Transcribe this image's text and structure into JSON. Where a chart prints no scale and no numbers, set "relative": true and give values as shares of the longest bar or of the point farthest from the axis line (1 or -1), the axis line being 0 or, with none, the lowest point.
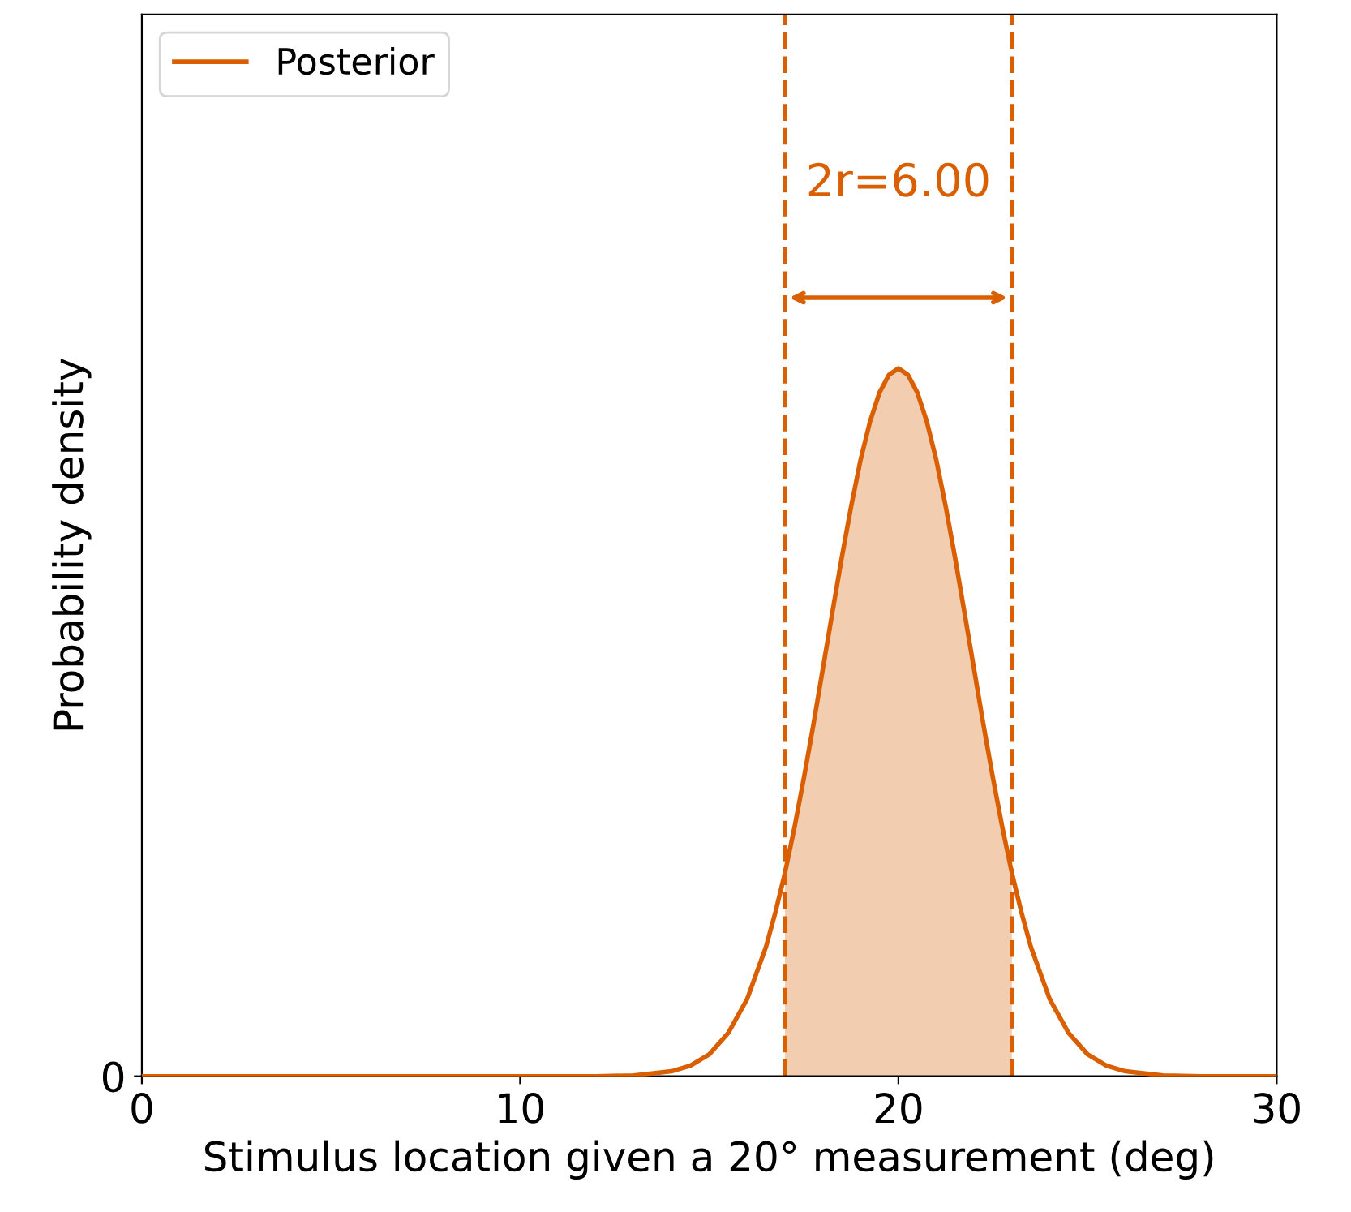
{
  "chart_data": {
    "type": "line",
    "relative": true,
    "xlabel": "Stimulus location given a 20° measurement (deg)",
    "ylabel": "Probability density",
    "xlim": [
      0,
      30
    ],
    "xticks": [
      0,
      10,
      20,
      30
    ],
    "x": [
      0,
      5,
      10,
      12,
      13,
      14,
      14.5,
      15,
      15.5,
      16,
      16.5,
      16.75,
      17,
      17.25,
      17.5,
      17.75,
      18,
      18.25,
      18.5,
      18.75,
      19,
      19.25,
      19.5,
      19.75,
      20,
      20.25,
      20.5,
      20.75,
      21,
      21.25,
      21.5,
      21.75,
      22,
      22.25,
      22.5,
      22.75,
      23,
      23.25,
      23.5,
      24,
      24.5,
      25,
      25.5,
      26,
      27,
      28,
      30
    ],
    "series": [
      {
        "type": "area",
        "color": "#f2cdb0",
        "x": [
          17,
          17.25,
          17.5,
          17.75,
          18,
          18.25,
          18.5,
          18.75,
          19,
          19.25,
          19.5,
          19.75,
          20,
          20.25,
          20.5,
          20.75,
          21,
          21.25,
          21.5,
          21.75,
          22,
          22.25,
          22.5,
          22.75,
          23
        ],
        "values": [
          0.287,
          0.351,
          0.421,
          0.496,
          0.575,
          0.654,
          0.732,
          0.805,
          0.871,
          0.925,
          0.966,
          0.991,
          1,
          0.991,
          0.966,
          0.925,
          0.871,
          0.805,
          0.732,
          0.654,
          0.575,
          0.496,
          0.421,
          0.351,
          0.287
        ]
      },
      {
        "name": "Posterior",
        "color": "#d95f02",
        "values": [
          0,
          0,
          0,
          0,
          0.001,
          0.007,
          0.015,
          0.031,
          0.061,
          0.109,
          0.183,
          0.232,
          0.287,
          0.351,
          0.421,
          0.496,
          0.575,
          0.654,
          0.732,
          0.805,
          0.871,
          0.925,
          0.966,
          0.991,
          1,
          0.991,
          0.966,
          0.925,
          0.871,
          0.805,
          0.732,
          0.654,
          0.575,
          0.496,
          0.421,
          0.351,
          0.287,
          0.232,
          0.183,
          0.109,
          0.061,
          0.031,
          0.015,
          0.007,
          0.001,
          0,
          0
        ]
      }
    ],
    "ref_lines": [
      {
        "axis": "x",
        "value": 17,
        "label": null,
        "color": "#d95f02",
        "line_style": "dashed"
      },
      {
        "axis": "x",
        "value": 23,
        "label": null,
        "color": "#d95f02",
        "line_style": "dashed"
      }
    ],
    "annotations": [
      "0",
      "2r=6.00"
    ],
    "legend": "top left",
    "grid": false
  }
}
